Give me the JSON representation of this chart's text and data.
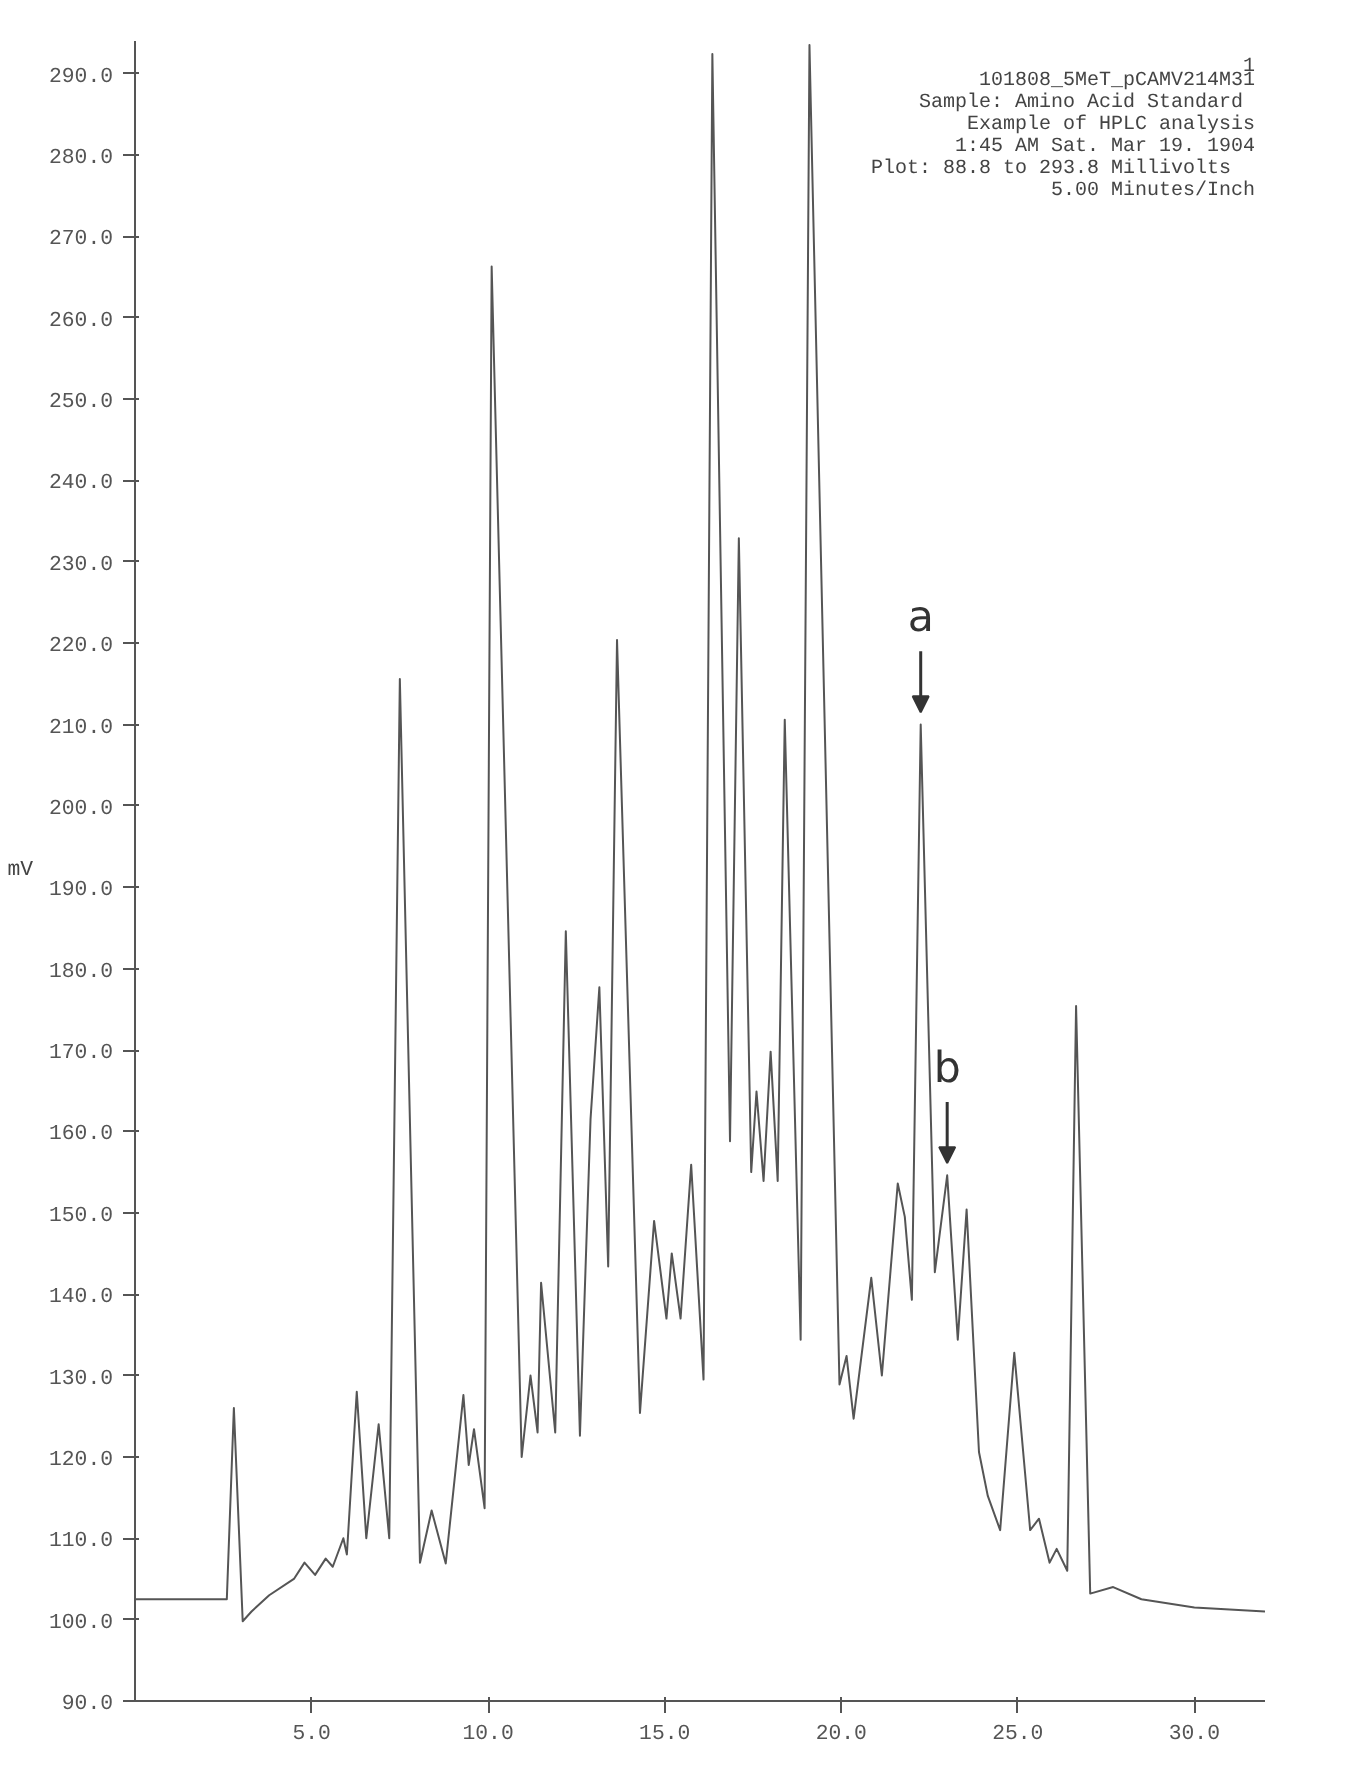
{
  "chart_data": {
    "type": "line",
    "ylabel": "mV",
    "annotations": [
      "1",
      "101808_5MeT_pCAMV214M31",
      "Sample:  Amino Acid Standard",
      "Example of HPLC analysis",
      "1:45 AM Sat. Mar 19. 1904",
      "Plot: 88.8 to  293.8  Millivolts",
      "5.00 Minutes/Inch",
      {
        "text": "a",
        "x": 22.25,
        "y": 210
      },
      {
        "text": "b",
        "x": 23.0,
        "y": 154.6
      }
    ],
    "x": [
      0,
      2.6,
      2.8,
      3.05,
      3.3,
      3.8,
      4.5,
      4.8,
      5.1,
      5.4,
      5.6,
      5.9,
      6.0,
      6.28,
      6.55,
      6.9,
      7.2,
      7.5,
      8.07,
      8.4,
      8.8,
      9.3,
      9.45,
      9.6,
      9.9,
      10.1,
      10.95,
      11.2,
      11.4,
      11.5,
      11.9,
      12.2,
      12.6,
      12.9,
      13.15,
      13.4,
      13.65,
      14.3,
      14.7,
      15.05,
      15.2,
      15.45,
      15.75,
      16.1,
      16.35,
      16.85,
      17.1,
      17.45,
      17.6,
      17.8,
      18.0,
      18.2,
      18.4,
      18.85,
      19.1,
      19.95,
      20.15,
      20.35,
      20.85,
      21.15,
      21.6,
      21.8,
      22.0,
      22.25,
      22.65,
      23.0,
      23.3,
      23.55,
      23.9,
      24.15,
      24.5,
      24.9,
      25.35,
      25.6,
      25.9,
      26.1,
      26.4,
      26.65,
      27.05,
      27.7,
      28.5,
      30.0,
      32.0
    ],
    "values": [
      102.5,
      102.5,
      126,
      99.8,
      101,
      103,
      105,
      107,
      105.5,
      107.5,
      106.5,
      110,
      108,
      128,
      110,
      124,
      110,
      215.6,
      107,
      113.4,
      106.9,
      127.6,
      119,
      123.4,
      113.7,
      266.3,
      120,
      130,
      123,
      141.4,
      123,
      184.6,
      122.6,
      161.5,
      177.7,
      143.4,
      220.4,
      125.4,
      149,
      137,
      145,
      137,
      155.9,
      129.5,
      292.4,
      158.8,
      232.9,
      155,
      164.9,
      153.9,
      169.8,
      153.9,
      210.6,
      134.4,
      293.5,
      128.9,
      132.4,
      124.7,
      142,
      130,
      153.6,
      149.5,
      139.3,
      210,
      142.7,
      154.6,
      134.4,
      150.4,
      120.6,
      115.2,
      111,
      132.8,
      111,
      112.4,
      107,
      108.7,
      106,
      175.4,
      103.2,
      104,
      102.5,
      101.5,
      101
    ],
    "color": "#555555",
    "marker": "none",
    "line_style": "solid",
    "xlim": [
      0,
      32
    ],
    "ylim": [
      90,
      294
    ],
    "xticks": [
      {
        "value": 5,
        "label": "5.0"
      },
      {
        "value": 10,
        "label": "10.0"
      },
      {
        "value": 15,
        "label": "15.0"
      },
      {
        "value": 20,
        "label": "20.0"
      },
      {
        "value": 25,
        "label": "25.0"
      },
      {
        "value": 30,
        "label": "30.0"
      }
    ],
    "yticks": [
      {
        "value": 90,
        "label": "90.0"
      },
      {
        "value": 100,
        "label": "100.0"
      },
      {
        "value": 110,
        "label": "110.0"
      },
      {
        "value": 120,
        "label": "120.0"
      },
      {
        "value": 130,
        "label": "130.0"
      },
      {
        "value": 140,
        "label": "140.0"
      },
      {
        "value": 150,
        "label": "150.0"
      },
      {
        "value": 160,
        "label": "160.0"
      },
      {
        "value": 170,
        "label": "170.0"
      },
      {
        "value": 180,
        "label": "180.0"
      },
      {
        "value": 190,
        "label": "190.0"
      },
      {
        "value": 200,
        "label": "200.0"
      },
      {
        "value": 210,
        "label": "210.0"
      },
      {
        "value": 220,
        "label": "220.0"
      },
      {
        "value": 230,
        "label": "230.0"
      },
      {
        "value": 240,
        "label": "240.0"
      },
      {
        "value": 250,
        "label": "250.0"
      },
      {
        "value": 260,
        "label": "260.0"
      },
      {
        "value": 270,
        "label": "270.0"
      },
      {
        "value": 280,
        "label": "280.0"
      },
      {
        "value": 290,
        "label": "290.0"
      }
    ]
  }
}
